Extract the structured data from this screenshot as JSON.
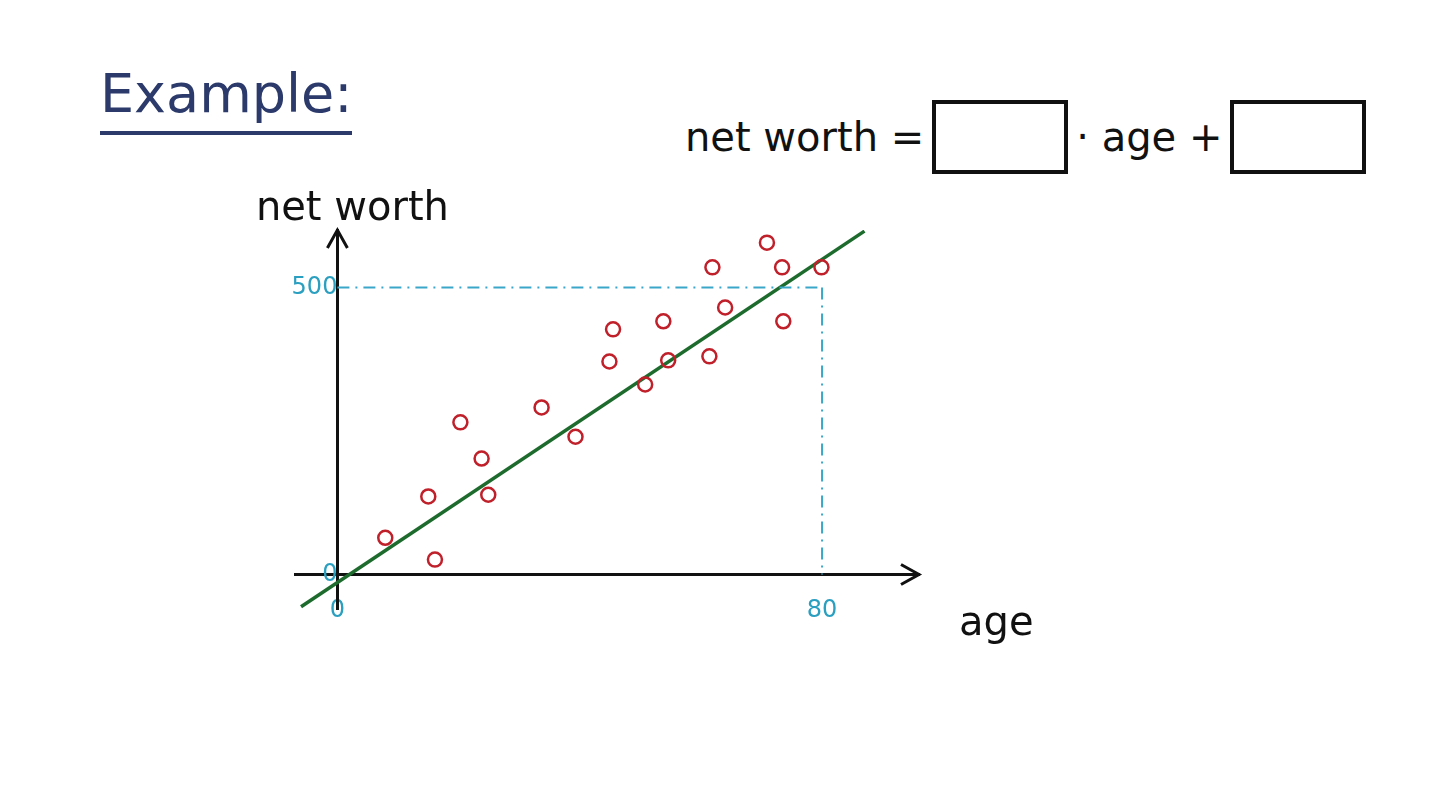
{
  "chart_data": {
    "type": "scatter",
    "title": "Example:",
    "annotation": [
      "net worth =",
      "· age +"
    ],
    "x_label": "age",
    "y_label": "net worth",
    "series": [
      {
        "type": "scatter",
        "color": "#c0202a",
        "marker": "circle",
        "x": [
          7.9,
          16.1,
          15.0,
          20.3,
          23.8,
          24.9,
          33.7,
          39.3,
          44.9,
          45.5,
          50.8,
          53.8,
          54.6,
          61.4,
          61.9,
          64.0,
          70.9,
          73.4,
          73.6,
          79.9
        ],
        "values": [
          64,
          26,
          136,
          265,
          202,
          139,
          291,
          240,
          371,
          427,
          331,
          441,
          373,
          380,
          535,
          465,
          578,
          535,
          441,
          535
        ]
      },
      {
        "type": "line",
        "color": "#1e6b2e",
        "x": [
          -6,
          87
        ],
        "values": [
          -56,
          598
        ]
      }
    ],
    "xlim": [
      -7,
      96
    ],
    "ylim": [
      -60,
      600
    ],
    "xticks": [
      0,
      80
    ],
    "yticks": [
      0,
      500
    ],
    "grid": false
  }
}
